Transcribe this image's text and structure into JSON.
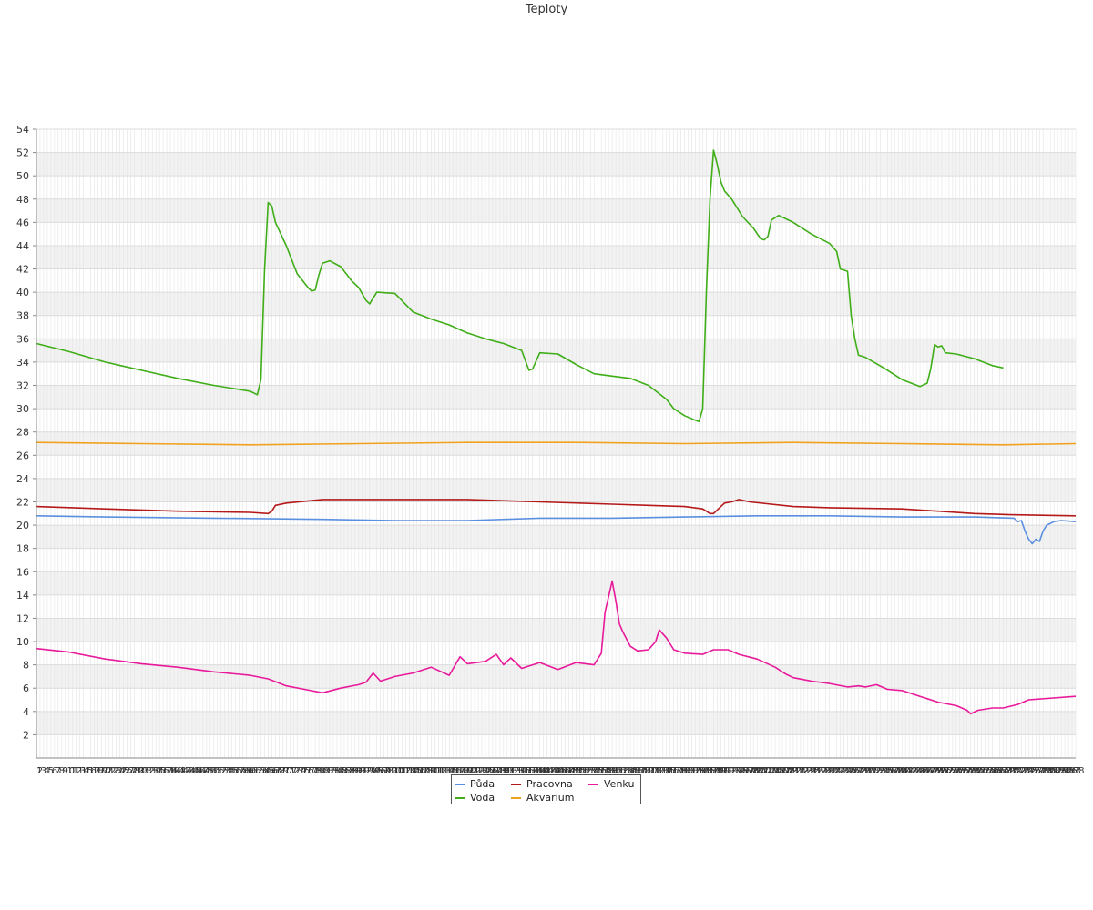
{
  "chart_data": {
    "type": "line",
    "title": "Teploty",
    "ylim": [
      0,
      54
    ],
    "yticks": [
      2,
      4,
      6,
      8,
      10,
      12,
      14,
      16,
      18,
      20,
      22,
      24,
      26,
      28,
      30,
      32,
      34,
      36,
      38,
      40,
      42,
      44,
      46,
      48,
      50,
      52,
      54
    ],
    "xlim": [
      1,
      288
    ],
    "x_tick_labels_note": "1 … 288 (one index per sample, labels overlap)",
    "x_first_labels": [
      "1",
      "3",
      "5",
      "6",
      "7",
      "8",
      "9",
      "10",
      "11",
      "13",
      "15",
      "16"
    ],
    "x_last_label": "288",
    "grid": true,
    "legend_position": "bottom-center",
    "series": [
      {
        "name": "Půda",
        "color": "#5b8fe0",
        "points": [
          [
            1,
            20.8
          ],
          [
            20,
            20.7
          ],
          [
            50,
            20.6
          ],
          [
            80,
            20.5
          ],
          [
            100,
            20.4
          ],
          [
            120,
            20.4
          ],
          [
            140,
            20.6
          ],
          [
            160,
            20.6
          ],
          [
            180,
            20.7
          ],
          [
            200,
            20.8
          ],
          [
            220,
            20.8
          ],
          [
            240,
            20.7
          ],
          [
            260,
            20.7
          ],
          [
            271,
            20.6
          ],
          [
            272,
            20.3
          ],
          [
            273,
            20.4
          ],
          [
            274,
            19.5
          ],
          [
            275,
            18.8
          ],
          [
            276,
            18.4
          ],
          [
            277,
            18.8
          ],
          [
            278,
            18.6
          ],
          [
            279,
            19.5
          ],
          [
            280,
            20.0
          ],
          [
            282,
            20.3
          ],
          [
            284,
            20.4
          ],
          [
            288,
            20.3
          ]
        ]
      },
      {
        "name": "Voda",
        "color": "#3fae18",
        "points": [
          [
            1,
            35.6
          ],
          [
            10,
            34.9
          ],
          [
            20,
            34.0
          ],
          [
            30,
            33.3
          ],
          [
            40,
            32.6
          ],
          [
            50,
            32.0
          ],
          [
            60,
            31.5
          ],
          [
            62,
            31.2
          ],
          [
            63,
            32.5
          ],
          [
            64,
            42.0
          ],
          [
            65,
            47.7
          ],
          [
            66,
            47.4
          ],
          [
            67,
            46.0
          ],
          [
            70,
            44.0
          ],
          [
            73,
            41.6
          ],
          [
            76,
            40.4
          ],
          [
            77,
            40.1
          ],
          [
            78,
            40.2
          ],
          [
            79,
            41.5
          ],
          [
            80,
            42.5
          ],
          [
            82,
            42.7
          ],
          [
            85,
            42.2
          ],
          [
            88,
            41.0
          ],
          [
            90,
            40.4
          ],
          [
            92,
            39.3
          ],
          [
            93,
            39.0
          ],
          [
            95,
            40.0
          ],
          [
            100,
            39.9
          ],
          [
            105,
            38.3
          ],
          [
            110,
            37.7
          ],
          [
            115,
            37.2
          ],
          [
            120,
            36.5
          ],
          [
            125,
            36.0
          ],
          [
            130,
            35.6
          ],
          [
            135,
            35.0
          ],
          [
            137,
            33.3
          ],
          [
            138,
            33.4
          ],
          [
            140,
            34.8
          ],
          [
            145,
            34.7
          ],
          [
            150,
            33.8
          ],
          [
            155,
            33.0
          ],
          [
            160,
            32.8
          ],
          [
            165,
            32.6
          ],
          [
            170,
            32.0
          ],
          [
            175,
            30.8
          ],
          [
            177,
            30.0
          ],
          [
            180,
            29.4
          ],
          [
            183,
            29.0
          ],
          [
            184,
            28.9
          ],
          [
            185,
            30.0
          ],
          [
            186,
            40.0
          ],
          [
            187,
            48.0
          ],
          [
            188,
            52.2
          ],
          [
            189,
            51.0
          ],
          [
            190,
            49.5
          ],
          [
            191,
            48.7
          ],
          [
            193,
            48.0
          ],
          [
            196,
            46.5
          ],
          [
            199,
            45.5
          ],
          [
            201,
            44.6
          ],
          [
            202,
            44.5
          ],
          [
            203,
            44.8
          ],
          [
            204,
            46.2
          ],
          [
            206,
            46.6
          ],
          [
            210,
            46.0
          ],
          [
            215,
            45.0
          ],
          [
            220,
            44.2
          ],
          [
            222,
            43.5
          ],
          [
            223,
            42.0
          ],
          [
            225,
            41.8
          ],
          [
            226,
            38.0
          ],
          [
            227,
            36.0
          ],
          [
            228,
            34.6
          ],
          [
            230,
            34.4
          ],
          [
            235,
            33.5
          ],
          [
            240,
            32.5
          ],
          [
            245,
            31.9
          ],
          [
            247,
            32.2
          ],
          [
            248,
            33.5
          ],
          [
            249,
            35.5
          ],
          [
            250,
            35.3
          ],
          [
            251,
            35.4
          ],
          [
            252,
            34.8
          ],
          [
            255,
            34.7
          ],
          [
            260,
            34.3
          ],
          [
            265,
            33.7
          ],
          [
            268,
            33.5
          ]
        ]
      },
      {
        "name": "Pracovna",
        "color": "#b51919",
        "points": [
          [
            1,
            21.6
          ],
          [
            20,
            21.4
          ],
          [
            40,
            21.2
          ],
          [
            60,
            21.1
          ],
          [
            65,
            21.0
          ],
          [
            66,
            21.2
          ],
          [
            67,
            21.7
          ],
          [
            70,
            21.9
          ],
          [
            80,
            22.2
          ],
          [
            100,
            22.2
          ],
          [
            120,
            22.2
          ],
          [
            140,
            22.0
          ],
          [
            160,
            21.8
          ],
          [
            170,
            21.7
          ],
          [
            180,
            21.6
          ],
          [
            185,
            21.4
          ],
          [
            187,
            21.0
          ],
          [
            188,
            21.0
          ],
          [
            189,
            21.3
          ],
          [
            191,
            21.9
          ],
          [
            193,
            22.0
          ],
          [
            195,
            22.2
          ],
          [
            198,
            22.0
          ],
          [
            210,
            21.6
          ],
          [
            220,
            21.5
          ],
          [
            240,
            21.4
          ],
          [
            250,
            21.2
          ],
          [
            260,
            21.0
          ],
          [
            270,
            20.9
          ],
          [
            288,
            20.8
          ]
        ]
      },
      {
        "name": "Akvarium",
        "color": "#f0a21e",
        "points": [
          [
            1,
            27.1
          ],
          [
            30,
            27.0
          ],
          [
            60,
            26.9
          ],
          [
            90,
            27.0
          ],
          [
            120,
            27.1
          ],
          [
            150,
            27.1
          ],
          [
            180,
            27.0
          ],
          [
            210,
            27.1
          ],
          [
            240,
            27.0
          ],
          [
            268,
            26.9
          ],
          [
            288,
            27.0
          ]
        ]
      },
      {
        "name": "Venku",
        "color": "#e8199a",
        "points": [
          [
            1,
            9.4
          ],
          [
            10,
            9.1
          ],
          [
            20,
            8.5
          ],
          [
            30,
            8.1
          ],
          [
            40,
            7.8
          ],
          [
            50,
            7.4
          ],
          [
            60,
            7.1
          ],
          [
            65,
            6.8
          ],
          [
            70,
            6.2
          ],
          [
            75,
            5.9
          ],
          [
            80,
            5.6
          ],
          [
            85,
            6.0
          ],
          [
            90,
            6.3
          ],
          [
            92,
            6.5
          ],
          [
            94,
            7.3
          ],
          [
            96,
            6.6
          ],
          [
            100,
            7.0
          ],
          [
            105,
            7.3
          ],
          [
            110,
            7.8
          ],
          [
            115,
            7.1
          ],
          [
            118,
            8.7
          ],
          [
            120,
            8.1
          ],
          [
            125,
            8.3
          ],
          [
            128,
            8.9
          ],
          [
            130,
            8.0
          ],
          [
            132,
            8.6
          ],
          [
            135,
            7.7
          ],
          [
            140,
            8.2
          ],
          [
            145,
            7.6
          ],
          [
            150,
            8.2
          ],
          [
            155,
            8.0
          ],
          [
            157,
            9.0
          ],
          [
            158,
            12.5
          ],
          [
            160,
            15.2
          ],
          [
            161,
            13.5
          ],
          [
            162,
            11.5
          ],
          [
            163,
            10.8
          ],
          [
            165,
            9.6
          ],
          [
            167,
            9.2
          ],
          [
            170,
            9.3
          ],
          [
            172,
            10.0
          ],
          [
            173,
            11.0
          ],
          [
            175,
            10.3
          ],
          [
            177,
            9.3
          ],
          [
            180,
            9.0
          ],
          [
            185,
            8.9
          ],
          [
            188,
            9.3
          ],
          [
            192,
            9.3
          ],
          [
            195,
            8.9
          ],
          [
            200,
            8.5
          ],
          [
            205,
            7.8
          ],
          [
            208,
            7.2
          ],
          [
            210,
            6.9
          ],
          [
            215,
            6.6
          ],
          [
            220,
            6.4
          ],
          [
            225,
            6.1
          ],
          [
            228,
            6.2
          ],
          [
            230,
            6.1
          ],
          [
            233,
            6.3
          ],
          [
            236,
            5.9
          ],
          [
            240,
            5.8
          ],
          [
            245,
            5.3
          ],
          [
            250,
            4.8
          ],
          [
            255,
            4.5
          ],
          [
            258,
            4.1
          ],
          [
            259,
            3.8
          ],
          [
            261,
            4.1
          ],
          [
            265,
            4.3
          ],
          [
            268,
            4.3
          ],
          [
            272,
            4.6
          ],
          [
            275,
            5.0
          ],
          [
            288,
            5.3
          ]
        ]
      }
    ]
  },
  "legend": [
    {
      "name": "Půda",
      "color": "#5b8fe0"
    },
    {
      "name": "Pracovna",
      "color": "#b51919"
    },
    {
      "name": "Venku",
      "color": "#e8199a"
    },
    {
      "name": "Voda",
      "color": "#3fae18"
    },
    {
      "name": "Akvarium",
      "color": "#f0a21e"
    }
  ]
}
